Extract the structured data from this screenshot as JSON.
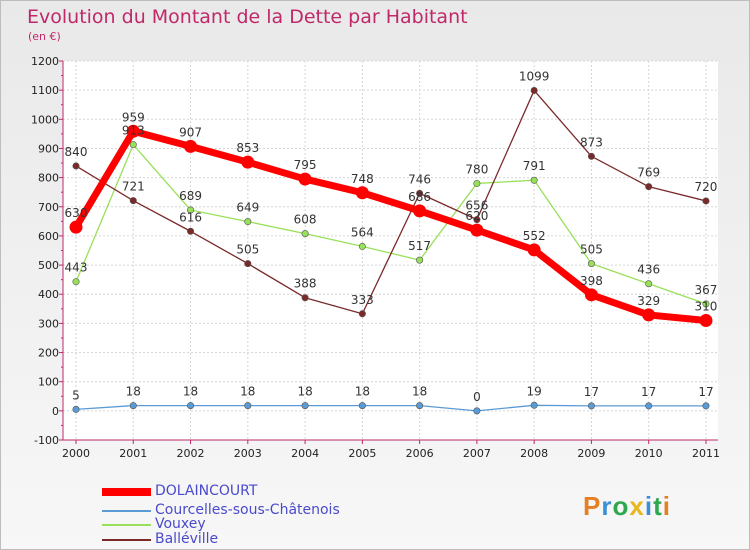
{
  "header": {
    "title": "Evolution du Montant de la Dette par Habitant",
    "unit": "(en €)"
  },
  "chart_data": {
    "type": "line",
    "title": "Evolution du Montant de la Dette par Habitant",
    "subtitle": "(en €)",
    "xlabel": "",
    "ylabel": "",
    "x": [
      "2000",
      "2001",
      "2002",
      "2003",
      "2004",
      "2005",
      "2006",
      "2007",
      "2008",
      "2009",
      "2010",
      "2011"
    ],
    "ylim": [
      -100,
      1200
    ],
    "yticks": [
      "-100",
      "0",
      "100",
      "200",
      "300",
      "400",
      "500",
      "600",
      "700",
      "800",
      "900",
      "1000",
      "1100",
      "1200"
    ],
    "grid": true,
    "legend_position": "bottom",
    "series": [
      {
        "name": "DOLAINCOURT",
        "color": "#ff0000",
        "values": [
          630,
          959,
          907,
          853,
          795,
          748,
          686,
          620,
          552,
          398,
          329,
          310
        ],
        "labels": [
          "630",
          "959",
          "907",
          "853",
          "795",
          "748",
          "686",
          "620",
          "552",
          "398",
          "329",
          "310"
        ]
      },
      {
        "name": "Courcelles-sous-Châtenois",
        "color": "#5b9bd5",
        "values": [
          5,
          18,
          18,
          18,
          18,
          18,
          18,
          0,
          19,
          17,
          17,
          17
        ],
        "labels": [
          "5",
          "18",
          "18",
          "18",
          "18",
          "18",
          "18",
          "0",
          "19",
          "17",
          "17",
          "17"
        ]
      },
      {
        "name": "Vouxey",
        "color": "#99e05a",
        "values": [
          443,
          913,
          689,
          649,
          608,
          564,
          517,
          780,
          791,
          505,
          436,
          367
        ],
        "labels": [
          "443",
          "913",
          "689",
          "649",
          "608",
          "564",
          "517",
          "780",
          "791",
          "505",
          "436",
          "367"
        ]
      },
      {
        "name": "Balléville",
        "color": "#7b2a2a",
        "values": [
          840,
          721,
          616,
          505,
          388,
          333,
          746,
          656,
          1099,
          873,
          769,
          720
        ],
        "labels": [
          "840",
          "721",
          "616",
          "505",
          "388",
          "333",
          "746",
          "656",
          "1099",
          "873",
          "769",
          "720"
        ]
      }
    ]
  },
  "legend": {
    "items": [
      {
        "label": "DOLAINCOURT"
      },
      {
        "label": "Courcelles-sous-Châtenois"
      },
      {
        "label": "Vouxey"
      },
      {
        "label": "Balléville"
      }
    ]
  },
  "logo": {
    "text": "Proxiti",
    "letters": [
      {
        "ch": "P",
        "color": "#e67e22"
      },
      {
        "ch": "r",
        "color": "#3b8fd6"
      },
      {
        "ch": "o",
        "color": "#2ea84f"
      },
      {
        "ch": "x",
        "color": "#e6b81e"
      },
      {
        "ch": "i",
        "color": "#3b8fd6"
      },
      {
        "ch": "t",
        "color": "#2ea84f"
      },
      {
        "ch": "i",
        "color": "#e67e22"
      }
    ]
  }
}
